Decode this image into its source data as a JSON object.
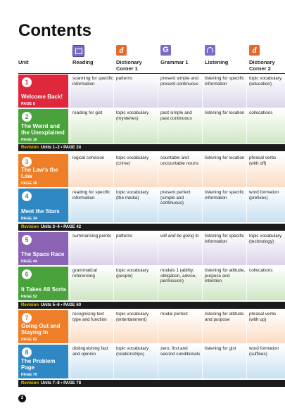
{
  "title": "Contents",
  "headers": {
    "unit": "Unit",
    "reading": "Reading",
    "dictionary1": "Dictionary Corner 1",
    "grammar": "Grammar 1",
    "listening": "Listening",
    "dictionary2": "Dictionary Corner 2"
  },
  "icons": {
    "reading": "book-icon",
    "dictionary": "dictionary-d-icon",
    "dictionary_letter": "d",
    "grammar": "grammar-g-icon",
    "grammar_letter": "G",
    "listening": "headphones-icon"
  },
  "units": [
    {
      "num": "1",
      "title": "Welcome Back!",
      "page": "PAGE 8",
      "color": "#e0283c",
      "tint": "#dcd6ea",
      "reading": "scanning for specific information",
      "dict1": "patterns",
      "grammar": "present simple and present continuous",
      "listening": "listening for specific information",
      "dict2": "topic vocabulary (education)"
    },
    {
      "num": "2",
      "title": "The Weird and the Unexplained",
      "page": "PAGE 16",
      "color": "#4aa23c",
      "tint": "#cfe6c4",
      "reading": "reading for gist",
      "dict1": "topic vocabulary (mysteries)",
      "grammar": "past simple and past continuous",
      "listening": "listening for location",
      "dict2": "collocations"
    },
    {
      "num": "3",
      "title": "The Law's the Law",
      "page": "PAGE 26",
      "color": "#ef7e28",
      "tint": "#fbdcc4",
      "reading": "logical cohesion",
      "dict1": "topic vocabulary (crime)",
      "grammar": "countable and uncountable nouns",
      "listening": "listening for location",
      "dict2": "phrasal verbs (with off)"
    },
    {
      "num": "4",
      "title": "Meet the Stars",
      "page": "PAGE 34",
      "color": "#2e88c4",
      "tint": "#c7e0f0",
      "reading": "reading for specific information",
      "dict1": "topic vocabulary (the media)",
      "grammar": "present perfect (simple and continuous)",
      "listening": "listening for specific information",
      "dict2": "word formation (prefixes)"
    },
    {
      "num": "5",
      "title": "The Space Race",
      "page": "PAGE 44",
      "color": "#8a63b4",
      "tint": "#ddd2ea",
      "reading": "summarising points",
      "dict1": "patterns",
      "grammar": "will and be going to",
      "listening": "listening for specific information",
      "dict2": "topic vocabulary (technology)"
    },
    {
      "num": "6",
      "title": "It Takes All Sorts",
      "page": "PAGE 52",
      "color": "#4aa23c",
      "tint": "#cfe6c4",
      "reading": "grammatical referencing",
      "dict1": "topic vocabulary (people)",
      "grammar": "modals 1 (ability, obligation, advice, permission)",
      "listening": "listening for attitude, purpose and intention",
      "dict2": "collocations"
    },
    {
      "num": "7",
      "title": "Going Out and Staying In",
      "page": "PAGE 62",
      "color": "#ef7e28",
      "tint": "#fbdcc4",
      "reading": "recognising text type and function",
      "dict1": "topic vocabulary (entertainment)",
      "grammar": "modal perfect",
      "listening": "listening for attitude and purpose",
      "dict2": "phrasal verbs (with up)"
    },
    {
      "num": "8",
      "title": "The Problem Page",
      "page": "PAGE 70",
      "color": "#2e88c4",
      "tint": "#c7e0f0",
      "reading": "distinguishing fact and opinion",
      "dict1": "topic vocabulary (relationships)",
      "grammar": "zero, first and second conditionals",
      "listening": "listening for gist",
      "dict2": "word formation (suffixes)"
    }
  ],
  "revisions": [
    {
      "label": "Revision",
      "text": "Units 1–2 • PAGE 24"
    },
    {
      "label": "Revision",
      "text": "Units 3–4 • PAGE 42"
    },
    {
      "label": "Revision",
      "text": "Units 5–6 • PAGE 60"
    },
    {
      "label": "Revision",
      "text": "Units 7–8 • PAGE 78"
    }
  ],
  "page_number": "2"
}
